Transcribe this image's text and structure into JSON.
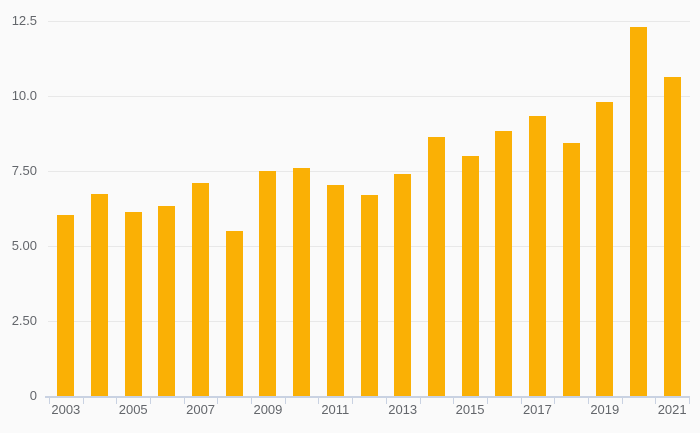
{
  "chart_data": {
    "type": "bar",
    "categories": [
      "2003",
      "2004",
      "2005",
      "2006",
      "2007",
      "2008",
      "2009",
      "2010",
      "2011",
      "2012",
      "2013",
      "2014",
      "2015",
      "2016",
      "2017",
      "2018",
      "2019",
      "2020",
      "2021"
    ],
    "values": [
      6.05,
      6.75,
      6.15,
      6.35,
      7.1,
      5.5,
      7.5,
      7.6,
      7.05,
      6.7,
      7.4,
      8.65,
      8.0,
      8.85,
      9.35,
      8.45,
      9.8,
      12.3,
      10.65
    ],
    "ylim": [
      0,
      12.5
    ],
    "y_ticks": [
      {
        "value": 0,
        "label": "0"
      },
      {
        "value": 2.5,
        "label": "2.50"
      },
      {
        "value": 5,
        "label": "5.00"
      },
      {
        "value": 7.5,
        "label": "7.50"
      },
      {
        "value": 10,
        "label": "10.0"
      },
      {
        "value": 12.5,
        "label": "12.5"
      }
    ],
    "x_tick_labels": [
      "2003",
      "2005",
      "2007",
      "2009",
      "2011",
      "2013",
      "2015",
      "2017",
      "2019",
      "2021"
    ],
    "grid": "horizontal",
    "legend": "none",
    "colors": {
      "bar": "#fab005",
      "background": "#fafafa",
      "gridline": "#e8e8e8",
      "axis": "#c9d2e2",
      "tick_label": "#63666b"
    }
  }
}
